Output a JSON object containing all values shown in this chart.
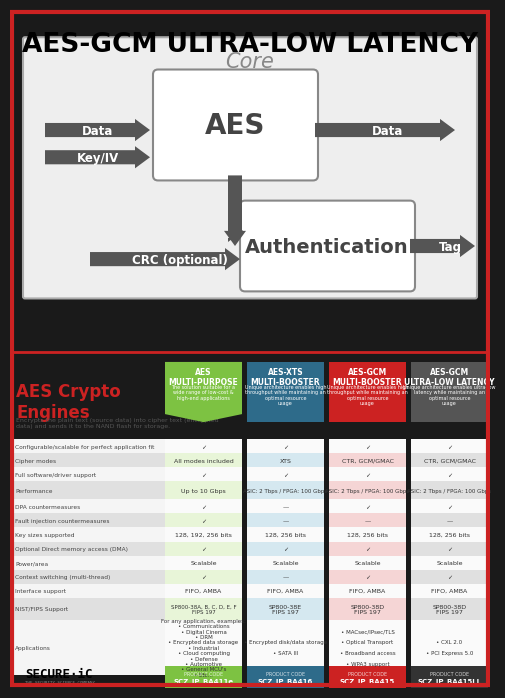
{
  "title": "AES-GCM ULTRA-LOW LATENCY",
  "top_bg": "#ffffff",
  "bottom_bg": "#1a1a1a",
  "core_bg": "#eeeeee",
  "core_label": "Core",
  "aes_box_label": "AES",
  "auth_box_label": "Authentication",
  "arrow_color": "#555555",
  "arrow_inputs": [
    "Data",
    "Key/IV"
  ],
  "arrow_outputs": [
    "Data",
    "Tag"
  ],
  "crc_label": "CRC (optional)",
  "columns": [
    {
      "title": "AES\nMULTI-PURPOSE",
      "subtitle": "The solution suitable for a\nwide range of low-cost &\nhigh-end applications",
      "header_color": "#7dc242",
      "header_text_color": "#ffffff",
      "data_color": "#e8f5d8",
      "product_color": "#7dc242",
      "product_code": "SCZ_IP_BA411e",
      "values": {
        "configurable": "✓",
        "cipher_modes": "All modes included",
        "software": "✓",
        "performance": "Up to 10 Gbps",
        "dpa": "✓",
        "fault": "✓",
        "key_sizes": "128, 192, 256 bits",
        "dma": "✓",
        "power": "Scalable",
        "context": "✓",
        "interface": "FIFO, AMBA",
        "nist": "SP800-38A, B, C, D, E, F\nFIPS 197",
        "applications": "For any application, examples:\n• Communications\n• Digital Cinema\n• DRM\n• Encrypted data storage\n• Industrial\n• Cloud computing\n• Defense\n• Automotive\n• General MCU's\n• Etc..."
      }
    },
    {
      "title": "AES-XTS\nMULTI-BOOSTER",
      "subtitle": "Unique architecture enables high\nthroughput while maintaining an\noptimal resource\nusage",
      "header_color": "#2e6b8a",
      "header_text_color": "#ffffff",
      "data_color": "#d5e8f0",
      "product_color": "#2e6b8a",
      "product_code": "SCZ_IP_BA416",
      "values": {
        "configurable": "✓",
        "cipher_modes": "XTS",
        "software": "✓",
        "performance": "ASIC: 2 Tbps / FPGA: 100 Gbps",
        "dpa": "—",
        "fault": "—",
        "key_sizes": "128, 256 bits",
        "dma": "✓",
        "power": "Scalable",
        "context": "—",
        "interface": "FIFO, AMBA",
        "nist": "SP800-38E\nFIPS 197",
        "applications": "• Encrypted disk/data storage\n\n• SATA III"
      }
    },
    {
      "title": "AES-GCM\nMULTI-BOOSTER",
      "subtitle": "Unique architecture enables high\nthroughput while maintaining an\noptimal resource\nusage",
      "header_color": "#cc2222",
      "header_text_color": "#ffffff",
      "data_color": "#f5d5d5",
      "product_color": "#cc2222",
      "product_code": "SCZ_IP_BA415",
      "values": {
        "configurable": "✓",
        "cipher_modes": "CTR, GCM/GMAC",
        "software": "✓",
        "performance": "ASIC: 2 Tbps / FPGA: 100 Gbps",
        "dpa": "✓",
        "fault": "—",
        "key_sizes": "128, 256 bits",
        "dma": "✓",
        "power": "Scalable",
        "context": "✓",
        "interface": "FIFO, AMBA",
        "nist": "SP800-38D\nFIPS 197",
        "applications": "• MACsec/IPsec/TLS\n\n• Optical Transport\n\n• Broadband access\n\n• WPA3 support"
      }
    },
    {
      "title": "AES-GCM\nULTRA-LOW LATENCY",
      "subtitle": "Unique architecture enables ultra-low\nlatency while maintaining an\noptimal resource\nusage",
      "header_color": "#555555",
      "header_text_color": "#ffffff",
      "data_color": "#e0e0e0",
      "product_color": "#333333",
      "product_code": "SCZ_IP_BA415LL",
      "values": {
        "configurable": "✓",
        "cipher_modes": "CTR, GCM/GMAC",
        "software": "✓",
        "performance": "ASIC: 2 Tbps / FPGA: 100 Gbps",
        "dpa": "✓",
        "fault": "—",
        "key_sizes": "128, 256 bits",
        "dma": "✓",
        "power": "Scalable",
        "context": "✓",
        "interface": "FIFO, AMBA",
        "nist": "SP800-38D\nFIPS 197",
        "applications": "• CXL 2.0\n\n• PCI Express 5.0"
      }
    }
  ],
  "row_labels": [
    "Configurable/scalable for perfect application fit",
    "Cipher modes",
    "Full software/driver support",
    "Performance",
    "DPA countermeasures",
    "Fault injection countermeasures",
    "Key sizes supported",
    "Optional Direct memory access (DMA)",
    "Power/area",
    "Context switching (multi-thread)",
    "Interface support",
    "NIST/FIPS Support",
    "Applications"
  ],
  "row_keys": [
    "configurable",
    "cipher_modes",
    "software",
    "performance",
    "dpa",
    "fault",
    "key_sizes",
    "dma",
    "power",
    "context",
    "interface",
    "nist",
    "applications"
  ],
  "row_shaded": [
    false,
    true,
    false,
    true,
    false,
    true,
    false,
    true,
    false,
    true,
    false,
    true,
    false
  ]
}
